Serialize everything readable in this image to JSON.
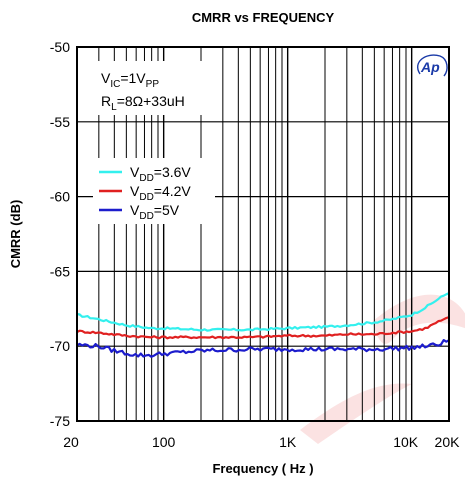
{
  "chart_data": {
    "type": "line",
    "title": "CMRR vs FREQUENCY",
    "xlabel": "Frequency ( Hz )",
    "ylabel": "CMRR (dB)",
    "x_scale": "log",
    "xlim": [
      20,
      20000
    ],
    "ylim": [
      -75,
      -50
    ],
    "grid": true,
    "x_ticks": [
      {
        "value": 20,
        "label": "20"
      },
      {
        "value": 100,
        "label": "100"
      },
      {
        "value": 1000,
        "label": "1K"
      },
      {
        "value": 10000,
        "label": "10K"
      },
      {
        "value": 20000,
        "label": "20K"
      }
    ],
    "y_ticks": [
      {
        "value": -50,
        "label": "-50"
      },
      {
        "value": -55,
        "label": "-55"
      },
      {
        "value": -60,
        "label": "-60"
      },
      {
        "value": -65,
        "label": "-65"
      },
      {
        "value": -70,
        "label": "-70"
      },
      {
        "value": -75,
        "label": "-75"
      }
    ],
    "conditions": [
      {
        "base": "V",
        "sub": "IC",
        "rest": "=1V",
        "sub2": "PP"
      },
      {
        "base": "R",
        "sub": "L",
        "rest": "=8Ω+33uH",
        "sub2": ""
      }
    ],
    "legend_position": "upper-left",
    "series": [
      {
        "name": "VDD=3.6V",
        "legend": {
          "base": "V",
          "sub": "DD",
          "rest": "=3.6V"
        },
        "color": "#33f0ee",
        "x": [
          20,
          30,
          50,
          80,
          100,
          200,
          500,
          1000,
          2000,
          3000,
          5000,
          7000,
          10000,
          13000,
          16000,
          20000
        ],
        "y": [
          -67.9,
          -68.2,
          -68.6,
          -68.8,
          -68.8,
          -68.9,
          -68.9,
          -68.8,
          -68.7,
          -68.6,
          -68.4,
          -68.2,
          -67.9,
          -67.4,
          -66.9,
          -66.4
        ]
      },
      {
        "name": "VDD=4.2V",
        "legend": {
          "base": "V",
          "sub": "DD",
          "rest": "=4.2V"
        },
        "color": "#e02020",
        "x": [
          20,
          30,
          50,
          80,
          100,
          200,
          500,
          1000,
          2000,
          3000,
          5000,
          7000,
          10000,
          13000,
          16000,
          20000
        ],
        "y": [
          -69.0,
          -69.1,
          -69.3,
          -69.4,
          -69.4,
          -69.4,
          -69.4,
          -69.3,
          -69.3,
          -69.2,
          -69.2,
          -69.1,
          -69.0,
          -68.8,
          -68.4,
          -68.1
        ]
      },
      {
        "name": "VDD=5V",
        "legend": {
          "base": "V",
          "sub": "DD",
          "rest": "=5V"
        },
        "color": "#1c1ccc",
        "x": [
          20,
          30,
          40,
          60,
          80,
          100,
          200,
          500,
          1000,
          2000,
          5000,
          10000,
          13000,
          16000,
          20000
        ],
        "y": [
          -69.9,
          -70.0,
          -70.3,
          -70.6,
          -70.6,
          -70.5,
          -70.3,
          -70.2,
          -70.2,
          -70.2,
          -70.2,
          -70.1,
          -70.0,
          -69.9,
          -69.6
        ]
      }
    ]
  }
}
